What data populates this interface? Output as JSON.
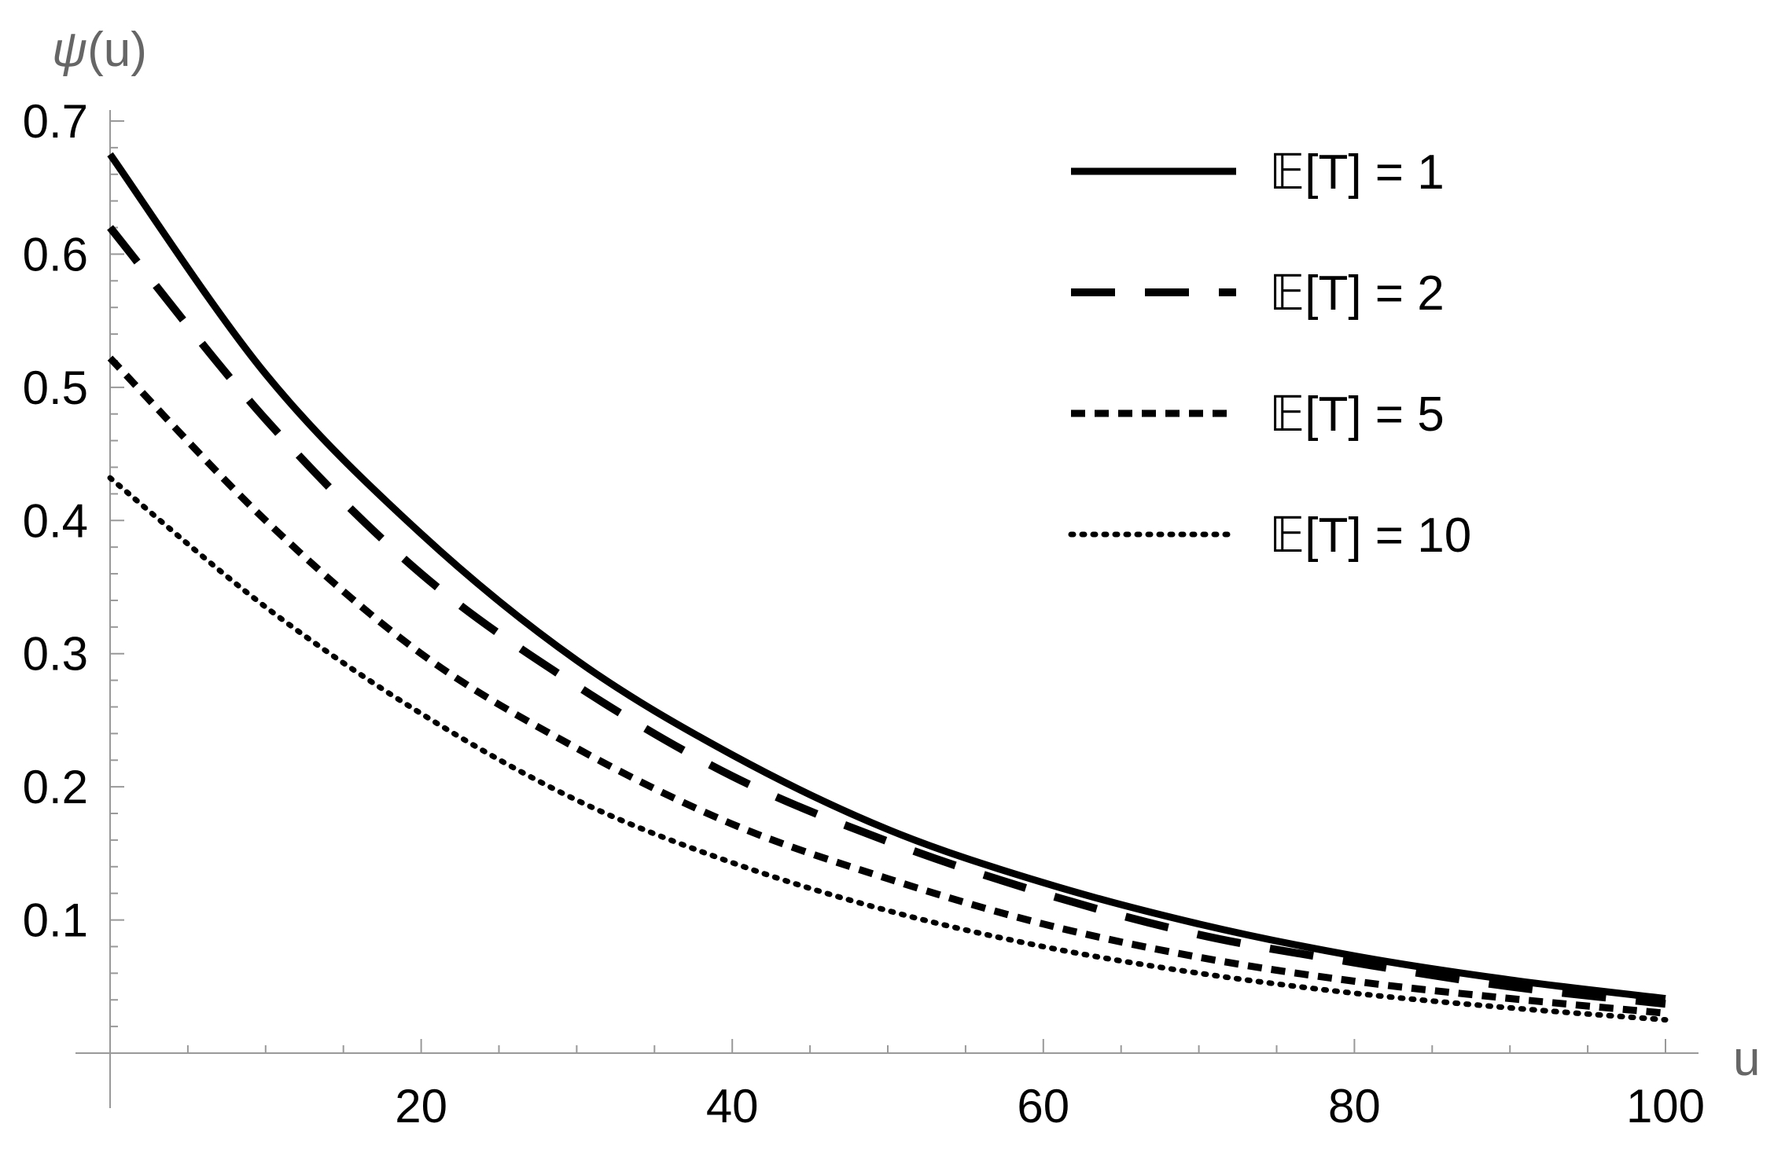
{
  "chart_data": {
    "type": "line",
    "title": "",
    "xlabel": "u",
    "ylabel_parts": {
      "symbol": "ψ",
      "arg": "(u)"
    },
    "xlim": [
      0,
      100
    ],
    "ylim": [
      0,
      0.7
    ],
    "x_ticks": [
      20,
      40,
      60,
      80,
      100
    ],
    "x_tick_labels": [
      "20",
      "40",
      "60",
      "80",
      "100"
    ],
    "y_ticks": [
      0.1,
      0.2,
      0.3,
      0.4,
      0.5,
      0.6,
      0.7
    ],
    "y_tick_labels": [
      "0.1",
      "0.2",
      "0.3",
      "0.4",
      "0.5",
      "0.6",
      "0.7"
    ],
    "grid": false,
    "legend_position": "top-right",
    "x": [
      0,
      10,
      20,
      30,
      40,
      50,
      60,
      70,
      80,
      90,
      100
    ],
    "series": [
      {
        "name": "𝔼[T] = 1",
        "style": "solid",
        "values": [
          0.675,
          0.51,
          0.39,
          0.295,
          0.224,
          0.168,
          0.128,
          0.097,
          0.073,
          0.055,
          0.041
        ]
      },
      {
        "name": "𝔼[T] = 2",
        "style": "dashed",
        "values": [
          0.62,
          0.476,
          0.36,
          0.276,
          0.208,
          0.159,
          0.12,
          0.089,
          0.068,
          0.05,
          0.037
        ]
      },
      {
        "name": "𝔼[T] = 5",
        "style": "short-dashed",
        "values": [
          0.522,
          0.4,
          0.3,
          0.229,
          0.172,
          0.131,
          0.097,
          0.072,
          0.054,
          0.041,
          0.03
        ]
      },
      {
        "name": "𝔼[T] = 10",
        "style": "dotted",
        "values": [
          0.432,
          0.335,
          0.255,
          0.19,
          0.143,
          0.107,
          0.08,
          0.06,
          0.045,
          0.034,
          0.025
        ]
      }
    ]
  }
}
